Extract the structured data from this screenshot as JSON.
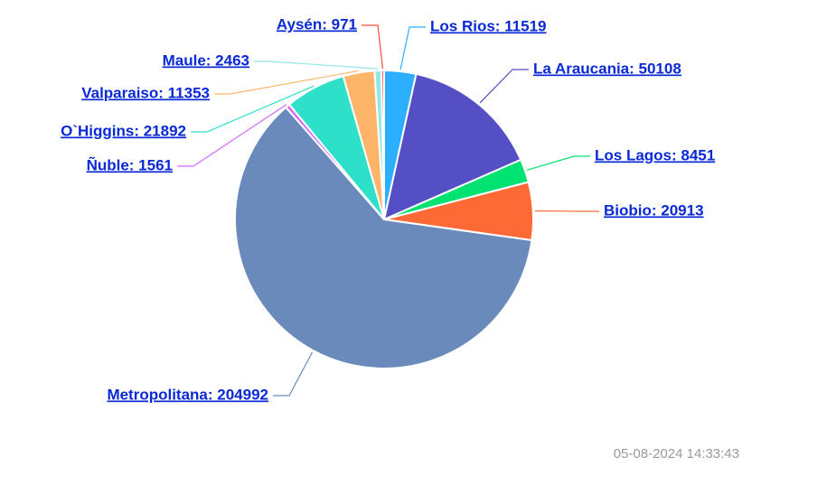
{
  "chart_data": {
    "type": "pie",
    "values": [
      11519,
      50108,
      8451,
      20913,
      204992,
      1561,
      21892,
      11353,
      2463,
      971
    ],
    "value_labels": [
      "Los Rios: 11519",
      "La Araucania: 50108",
      "Los Lagos: 8451",
      "Biobio: 20913",
      "Metropolitana: 204992",
      "Ñuble: 1561",
      "O`Higgins: 21892",
      "Valparaiso: 11353",
      "Maule: 2463",
      "Aysén: 971"
    ],
    "colors": [
      "#2caffe",
      "#544fc5",
      "#00e272",
      "#fe6a35",
      "#6b8abc",
      "#d568fb",
      "#2ee0ca",
      "#feb56a",
      "#91e8e1",
      "#fa4b42"
    ]
  },
  "timestamp": "05-08-2024 14:33:43"
}
